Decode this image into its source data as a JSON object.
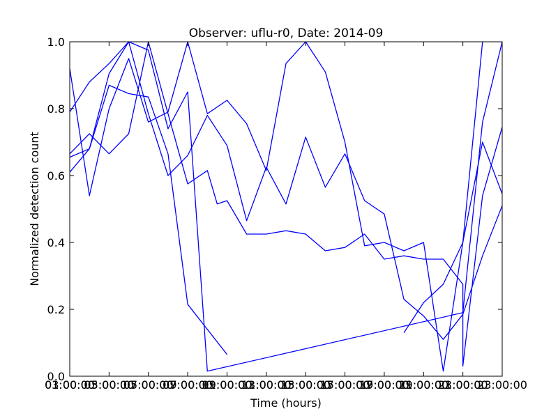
{
  "chart_data": {
    "type": "line",
    "title": "Observer: uflu-r0, Date: 2014-09",
    "xlabel": "Time (hours)",
    "ylabel": "Normalized detection count",
    "xlim": [
      1,
      23
    ],
    "ylim": [
      0,
      1
    ],
    "x_ticks": [
      {
        "value": 1,
        "labels": [
          "01:00:00",
          "03:00:00"
        ]
      },
      {
        "value": 3,
        "labels": [
          "03:00:00",
          "05:00:00"
        ]
      },
      {
        "value": 5,
        "labels": [
          "05:00:00",
          "07:00:00"
        ]
      },
      {
        "value": 7,
        "labels": [
          "07:00:00",
          "09:00:00"
        ]
      },
      {
        "value": 9,
        "labels": [
          "09:00:00",
          "11:00:00"
        ]
      },
      {
        "value": 11,
        "labels": [
          "11:00:00",
          "13:00:00"
        ]
      },
      {
        "value": 13,
        "labels": [
          "13:00:00",
          "15:00:00"
        ]
      },
      {
        "value": 15,
        "labels": [
          "15:00:00",
          "17:00:00"
        ]
      },
      {
        "value": 17,
        "labels": [
          "17:00:00",
          "19:00:00"
        ]
      },
      {
        "value": 19,
        "labels": [
          "19:00:00",
          "21:00:00"
        ]
      },
      {
        "value": 21,
        "labels": [
          "21:00:00",
          "23:00:00"
        ]
      },
      {
        "value": 23,
        "labels": [
          "23:00:00"
        ]
      }
    ],
    "y_ticks": [
      {
        "value": 0,
        "label": "0.0"
      },
      {
        "value": 0.2,
        "label": "0.2"
      },
      {
        "value": 0.4,
        "label": "0.4"
      },
      {
        "value": 0.6,
        "label": "0.6"
      },
      {
        "value": 0.8,
        "label": "0.8"
      },
      {
        "value": 1.0,
        "label": "1.0"
      }
    ],
    "grid": false,
    "line_color": "#0000ff",
    "series": [
      {
        "points": [
          [
            1,
            0.92
          ],
          [
            2,
            0.54
          ],
          [
            3,
            0.8
          ],
          [
            4,
            0.95
          ],
          [
            5,
            0.76
          ],
          [
            6,
            0.79
          ],
          [
            7,
            1.0
          ],
          [
            8,
            0.785
          ],
          [
            9,
            0.825
          ],
          [
            10,
            0.755
          ],
          [
            11,
            0.615
          ],
          [
            12,
            0.935
          ],
          [
            13,
            1.0
          ],
          [
            14,
            0.91
          ],
          [
            15,
            0.7
          ],
          [
            16,
            0.39
          ],
          [
            17,
            0.4
          ],
          [
            18,
            0.375
          ],
          [
            19,
            0.4
          ],
          [
            20,
            0.015
          ],
          [
            21,
            0.4
          ],
          [
            22,
            1.0
          ]
        ]
      },
      {
        "points": [
          [
            1,
            0.79
          ],
          [
            2,
            0.88
          ],
          [
            3,
            0.935
          ],
          [
            4,
            1.0
          ],
          [
            5,
            0.975
          ],
          [
            6,
            0.74
          ],
          [
            7,
            0.85
          ],
          [
            8,
            0.015
          ],
          [
            21,
            0.19
          ],
          [
            22,
            0.76
          ],
          [
            23,
            1.0
          ]
        ]
      },
      {
        "points": [
          [
            1,
            0.61
          ],
          [
            2,
            0.68
          ],
          [
            3,
            0.905
          ],
          [
            4,
            1.0
          ],
          [
            5,
            0.785
          ],
          [
            6,
            0.6
          ],
          [
            7,
            0.66
          ],
          [
            8,
            0.78
          ],
          [
            9,
            0.69
          ],
          [
            10,
            0.465
          ],
          [
            11,
            0.625
          ],
          [
            12,
            0.515
          ],
          [
            13,
            0.715
          ],
          [
            14,
            0.565
          ],
          [
            15,
            0.665
          ],
          [
            16,
            0.525
          ],
          [
            17,
            0.485
          ],
          [
            18,
            0.23
          ],
          [
            19,
            0.18
          ],
          [
            20,
            0.11
          ],
          [
            21,
            0.185
          ],
          [
            22,
            0.36
          ],
          [
            23,
            0.51
          ]
        ]
      },
      {
        "points": [
          [
            1,
            0.655
          ],
          [
            2,
            0.68
          ],
          [
            3,
            0.87
          ],
          [
            4,
            0.845
          ],
          [
            5,
            0.835
          ],
          [
            6,
            0.665
          ],
          [
            7,
            0.215
          ],
          [
            9,
            0.065
          ]
        ]
      },
      {
        "points": [
          [
            1,
            0.665
          ],
          [
            2,
            0.725
          ],
          [
            3,
            0.665
          ],
          [
            4,
            0.725
          ],
          [
            5,
            1.0
          ],
          [
            6,
            0.785
          ],
          [
            7,
            0.575
          ],
          [
            8,
            0.615
          ],
          [
            8.5,
            0.515
          ],
          [
            9,
            0.525
          ],
          [
            10,
            0.425
          ],
          [
            11,
            0.425
          ],
          [
            12,
            0.435
          ],
          [
            13,
            0.425
          ],
          [
            14,
            0.375
          ],
          [
            15,
            0.385
          ],
          [
            16,
            0.425
          ],
          [
            17,
            0.35
          ],
          [
            18,
            0.36
          ],
          [
            19,
            0.35
          ],
          [
            20,
            0.35
          ],
          [
            21,
            0.275
          ],
          [
            21,
            0.03
          ],
          [
            22,
            0.54
          ],
          [
            23,
            0.745
          ]
        ]
      },
      {
        "points": [
          [
            18,
            0.13
          ],
          [
            19,
            0.22
          ],
          [
            20,
            0.275
          ],
          [
            21,
            0.4
          ],
          [
            22,
            0.7
          ],
          [
            23,
            0.545
          ]
        ]
      }
    ]
  }
}
